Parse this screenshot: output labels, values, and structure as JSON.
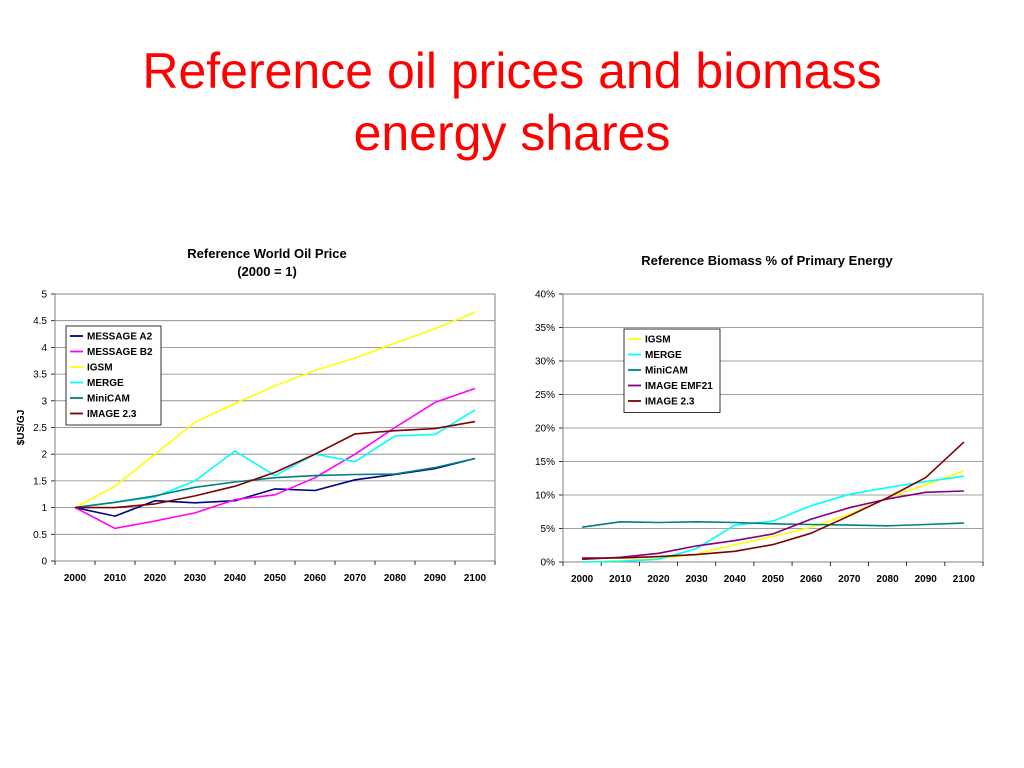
{
  "slide": {
    "title_line1": "Reference oil prices and biomass",
    "title_line2": "energy shares"
  },
  "colors": {
    "title": "#ff0000",
    "gridline": "#808080",
    "plot_border": "#808080"
  },
  "chart_data": [
    {
      "type": "line",
      "title_lines": [
        "Reference World Oil Price",
        "(2000 = 1)"
      ],
      "xlabel": "",
      "ylabel": "$US/GJ",
      "x": [
        2000,
        2010,
        2020,
        2030,
        2040,
        2050,
        2060,
        2070,
        2080,
        2090,
        2100
      ],
      "ylim": [
        0,
        5
      ],
      "yticks": [
        0,
        0.5,
        1,
        1.5,
        2,
        2.5,
        3,
        3.5,
        4,
        4.5,
        5
      ],
      "ytick_labels": [
        "0",
        "0.5",
        "1",
        "1.5",
        "2",
        "2.5",
        "3",
        "3.5",
        "4",
        "4.5",
        "5"
      ],
      "grid": true,
      "legend_position": "upper-left",
      "series": [
        {
          "name": "MESSAGE A2",
          "color": "#000080",
          "values": [
            1.0,
            0.84,
            1.13,
            1.09,
            1.13,
            1.35,
            1.32,
            1.52,
            1.62,
            1.73,
            1.92
          ]
        },
        {
          "name": "MESSAGE B2",
          "color": "#ff00ff",
          "values": [
            1.0,
            0.61,
            0.75,
            0.9,
            1.15,
            1.24,
            1.56,
            2.0,
            2.5,
            2.97,
            3.23
          ]
        },
        {
          "name": "IGSM",
          "color": "#ffff00",
          "values": [
            1.0,
            1.4,
            2.0,
            2.6,
            2.95,
            3.28,
            3.57,
            3.8,
            4.08,
            4.35,
            4.66
          ]
        },
        {
          "name": "MERGE",
          "color": "#00ffff",
          "values": [
            1.0,
            1.1,
            1.2,
            1.5,
            2.06,
            1.6,
            2.0,
            1.86,
            2.34,
            2.37,
            2.83
          ]
        },
        {
          "name": "MiniCAM",
          "color": "#008080",
          "values": [
            1.0,
            1.1,
            1.22,
            1.38,
            1.48,
            1.56,
            1.6,
            1.62,
            1.63,
            1.75,
            1.92
          ]
        },
        {
          "name": "IMAGE 2.3",
          "color": "#800000",
          "values": [
            1.0,
            1.0,
            1.07,
            1.22,
            1.4,
            1.66,
            2.0,
            2.38,
            2.44,
            2.48,
            2.61
          ]
        }
      ]
    },
    {
      "type": "line",
      "title_lines": [
        "Reference Biomass % of Primary Energy"
      ],
      "xlabel": "",
      "ylabel": "",
      "x": [
        2000,
        2010,
        2020,
        2030,
        2040,
        2050,
        2060,
        2070,
        2080,
        2090,
        2100
      ],
      "ylim": [
        0,
        40
      ],
      "yticks": [
        0,
        5,
        10,
        15,
        20,
        25,
        30,
        35,
        40
      ],
      "ytick_labels": [
        "0%",
        "5%",
        "10%",
        "15%",
        "20%",
        "25%",
        "30%",
        "35%",
        "40%"
      ],
      "grid": true,
      "legend_position": "upper-left",
      "series": [
        {
          "name": "IGSM",
          "color": "#ffff00",
          "values": [
            0.0,
            0.2,
            0.5,
            1.2,
            2.6,
            3.8,
            5.2,
            7.1,
            9.6,
            11.5,
            13.6
          ]
        },
        {
          "name": "MERGE",
          "color": "#00ffff",
          "values": [
            0.0,
            0.1,
            0.4,
            2.0,
            5.5,
            6.1,
            8.4,
            10.1,
            11.1,
            12.0,
            12.8
          ]
        },
        {
          "name": "MiniCAM",
          "color": "#008080",
          "values": [
            5.2,
            6.0,
            5.9,
            6.0,
            5.9,
            5.7,
            5.6,
            5.5,
            5.4,
            5.6,
            5.8
          ]
        },
        {
          "name": "IMAGE EMF21",
          "color": "#800080",
          "values": [
            0.4,
            0.7,
            1.3,
            2.4,
            3.2,
            4.2,
            6.4,
            8.1,
            9.4,
            10.4,
            10.6
          ]
        },
        {
          "name": "IMAGE 2.3",
          "color": "#800000",
          "values": [
            0.6,
            0.6,
            0.8,
            1.1,
            1.6,
            2.6,
            4.3,
            6.9,
            9.6,
            12.6,
            17.9
          ]
        }
      ]
    }
  ]
}
